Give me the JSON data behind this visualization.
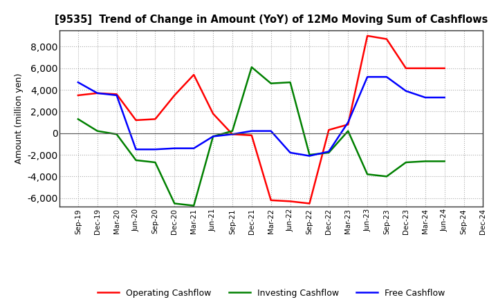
{
  "title": "[9535]  Trend of Change in Amount (YoY) of 12Mo Moving Sum of Cashflows",
  "ylabel": "Amount (million yen)",
  "x_labels": [
    "Sep-19",
    "Dec-19",
    "Mar-20",
    "Jun-20",
    "Sep-20",
    "Dec-20",
    "Mar-21",
    "Jun-21",
    "Sep-21",
    "Dec-21",
    "Mar-22",
    "Jun-22",
    "Sep-22",
    "Dec-22",
    "Mar-23",
    "Jun-23",
    "Sep-23",
    "Dec-23",
    "Mar-24",
    "Jun-24",
    "Sep-24",
    "Dec-24"
  ],
  "operating": [
    3500,
    3700,
    3600,
    1200,
    1300,
    3500,
    5400,
    1800,
    -100,
    -200,
    -6200,
    -6300,
    -6500,
    300,
    800,
    9000,
    8700,
    6000,
    6000,
    6000,
    null,
    null
  ],
  "investing": [
    1300,
    200,
    -100,
    -2500,
    -2700,
    -6500,
    -6700,
    -300,
    200,
    6100,
    4600,
    4700,
    -2000,
    -1800,
    200,
    -3800,
    -4000,
    -2700,
    -2600,
    -2600,
    null,
    null
  ],
  "free": [
    4700,
    3700,
    3500,
    -1500,
    -1500,
    -1400,
    -1400,
    -300,
    -100,
    200,
    200,
    -1800,
    -2100,
    -1700,
    1000,
    5200,
    5200,
    3900,
    3300,
    3300,
    null,
    null
  ],
  "operating_color": "#ff0000",
  "investing_color": "#008000",
  "free_color": "#0000ff",
  "ylim": [
    -6800,
    9500
  ],
  "yticks": [
    -6000,
    -4000,
    -2000,
    0,
    2000,
    4000,
    6000,
    8000
  ],
  "background_color": "#ffffff",
  "grid_color": "#aaaaaa",
  "legend_labels": [
    "Operating Cashflow",
    "Investing Cashflow",
    "Free Cashflow"
  ]
}
